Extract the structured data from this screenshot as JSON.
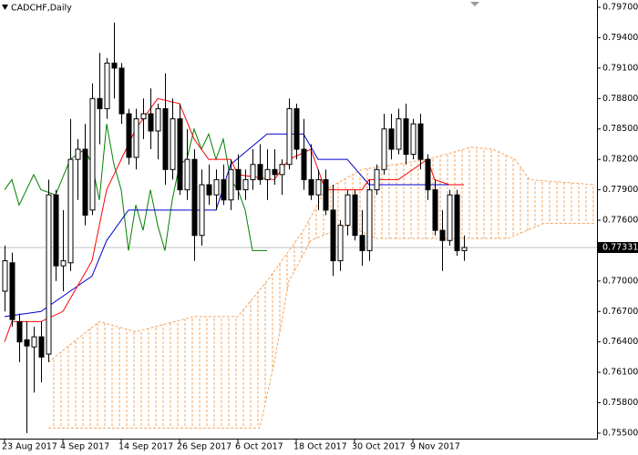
{
  "chart_data": {
    "type": "candlestick",
    "title": "CADCHF,Daily",
    "xlim": [
      -0.625,
      81.25
    ],
    "ylim": [
      0.75446,
      0.79772
    ],
    "xticks": [
      {
        "value": 0,
        "label": "23 Aug 2017"
      },
      {
        "value": 8,
        "label": "4 Sep 2017"
      },
      {
        "value": 16,
        "label": "14 Sep 2017"
      },
      {
        "value": 24,
        "label": "26 Sep 2017"
      },
      {
        "value": 32,
        "label": "6 Oct 2017"
      },
      {
        "value": 40,
        "label": "18 Oct 2017"
      },
      {
        "value": 48,
        "label": "30 Oct 2017"
      },
      {
        "value": 56,
        "label": "9 Nov 2017"
      }
    ],
    "yticks": [
      {
        "value": 0.797,
        "label": "0.79700"
      },
      {
        "value": 0.794,
        "label": "0.79400"
      },
      {
        "value": 0.791,
        "label": "0.79100"
      },
      {
        "value": 0.788,
        "label": "0.78800"
      },
      {
        "value": 0.785,
        "label": "0.78500"
      },
      {
        "value": 0.782,
        "label": "0.78200"
      },
      {
        "value": 0.779,
        "label": "0.77900"
      },
      {
        "value": 0.776,
        "label": "0.77600"
      },
      {
        "value": 0.77,
        "label": "0.77000"
      },
      {
        "value": 0.767,
        "label": "0.76700"
      },
      {
        "value": 0.764,
        "label": "0.76400"
      },
      {
        "value": 0.761,
        "label": "0.76100"
      },
      {
        "value": 0.758,
        "label": "0.75800"
      },
      {
        "value": 0.755,
        "label": "0.75500"
      }
    ],
    "current_price": {
      "value": 0.77331,
      "label": "0.77331"
    },
    "candles": {
      "open": [
        0.769,
        0.7718,
        0.766,
        0.7642,
        0.7635,
        0.7645,
        0.7628,
        0.7785,
        0.7715,
        0.7718,
        0.782,
        0.783,
        0.777,
        0.788,
        0.787,
        0.7915,
        0.791,
        0.7865,
        0.7822,
        0.786,
        0.7865,
        0.7848,
        0.787,
        0.781,
        0.786,
        0.779,
        0.782,
        0.7745,
        0.7795,
        0.7785,
        0.78,
        0.778,
        0.781,
        0.779,
        0.78,
        0.7815,
        0.78,
        0.781,
        0.7805,
        0.7815,
        0.787,
        0.783,
        0.78,
        0.7785,
        0.78,
        0.777,
        0.772,
        0.7755,
        0.7785,
        0.7745,
        0.773,
        0.779,
        0.781,
        0.785,
        0.783,
        0.786,
        0.7825,
        0.7855,
        0.782,
        0.779,
        0.775,
        0.774,
        0.7785,
        0.773
      ],
      "high": [
        0.7735,
        0.7728,
        0.7668,
        0.766,
        0.7655,
        0.766,
        0.78,
        0.779,
        0.777,
        0.786,
        0.784,
        0.7855,
        0.7895,
        0.7925,
        0.792,
        0.7955,
        0.7915,
        0.787,
        0.787,
        0.788,
        0.789,
        0.7875,
        0.7905,
        0.788,
        0.7875,
        0.785,
        0.783,
        0.781,
        0.7815,
        0.781,
        0.7815,
        0.782,
        0.7825,
        0.781,
        0.783,
        0.7835,
        0.783,
        0.783,
        0.782,
        0.788,
        0.7875,
        0.786,
        0.7835,
        0.781,
        0.781,
        0.7795,
        0.776,
        0.779,
        0.779,
        0.777,
        0.78,
        0.7815,
        0.7865,
        0.7865,
        0.787,
        0.7875,
        0.786,
        0.7865,
        0.7825,
        0.78,
        0.777,
        0.779,
        0.779,
        0.7745
      ],
      "low": [
        0.767,
        0.7655,
        0.762,
        0.755,
        0.759,
        0.76,
        0.762,
        0.77,
        0.769,
        0.771,
        0.778,
        0.7755,
        0.7765,
        0.7835,
        0.786,
        0.788,
        0.7855,
        0.7815,
        0.781,
        0.784,
        0.783,
        0.782,
        0.7795,
        0.78,
        0.7785,
        0.778,
        0.772,
        0.7735,
        0.7775,
        0.777,
        0.7775,
        0.777,
        0.778,
        0.778,
        0.779,
        0.7795,
        0.778,
        0.7795,
        0.7785,
        0.781,
        0.782,
        0.779,
        0.778,
        0.777,
        0.7765,
        0.7705,
        0.771,
        0.7745,
        0.774,
        0.7715,
        0.772,
        0.7785,
        0.7805,
        0.782,
        0.7825,
        0.7815,
        0.782,
        0.781,
        0.778,
        0.7745,
        0.771,
        0.7735,
        0.7725,
        0.772
      ],
      "close": [
        0.772,
        0.7662,
        0.764,
        0.7636,
        0.7645,
        0.7625,
        0.7785,
        0.7715,
        0.772,
        0.782,
        0.783,
        0.7765,
        0.788,
        0.787,
        0.7915,
        0.791,
        0.7865,
        0.7822,
        0.786,
        0.7865,
        0.7848,
        0.787,
        0.781,
        0.786,
        0.779,
        0.782,
        0.7745,
        0.7795,
        0.7785,
        0.78,
        0.778,
        0.781,
        0.779,
        0.78,
        0.7815,
        0.78,
        0.781,
        0.7805,
        0.7815,
        0.787,
        0.783,
        0.78,
        0.7785,
        0.78,
        0.777,
        0.772,
        0.7755,
        0.7785,
        0.7745,
        0.773,
        0.779,
        0.781,
        0.785,
        0.783,
        0.786,
        0.7825,
        0.7855,
        0.782,
        0.779,
        0.775,
        0.774,
        0.7785,
        0.773,
        0.77331
      ]
    },
    "series": [
      {
        "color": "#f4a460",
        "role": "cloud-top",
        "x": [
          6,
          13,
          18,
          26,
          32,
          36,
          41,
          44,
          49,
          58,
          64,
          67,
          70,
          72,
          81
        ],
        "values": [
          0.762,
          0.766,
          0.765,
          0.7665,
          0.7665,
          0.77,
          0.775,
          0.779,
          0.781,
          0.782,
          0.7832,
          0.783,
          0.782,
          0.78,
          0.7795
        ]
      },
      {
        "color": "#f4a460",
        "role": "cloud-bottom",
        "x": [
          6,
          35,
          37,
          39,
          42,
          47,
          51,
          69,
          74,
          81
        ],
        "values": [
          0.7555,
          0.7555,
          0.762,
          0.77,
          0.774,
          0.7755,
          0.7742,
          0.7742,
          0.7757,
          0.7757
        ]
      },
      {
        "color": "#008000",
        "role": "line",
        "x": [
          0,
          1,
          2,
          4,
          5,
          7,
          9,
          11,
          12,
          13,
          14,
          15,
          16,
          17,
          18,
          19,
          20,
          21,
          22,
          23,
          24,
          25,
          26,
          27,
          28,
          29,
          30,
          31,
          32,
          33,
          34,
          35,
          36
        ],
        "values": [
          0.779,
          0.78,
          0.7775,
          0.7805,
          0.779,
          0.7785,
          0.782,
          0.783,
          0.7815,
          0.778,
          0.7855,
          0.7815,
          0.779,
          0.773,
          0.7775,
          0.775,
          0.779,
          0.7755,
          0.773,
          0.778,
          0.7815,
          0.782,
          0.785,
          0.783,
          0.7845,
          0.782,
          0.784,
          0.78,
          0.779,
          0.777,
          0.773,
          0.773,
          0.773
        ]
      },
      {
        "color": "#0000cd",
        "role": "line",
        "x": [
          0,
          5,
          9,
          12,
          14,
          17,
          29,
          31,
          36,
          41,
          43,
          47,
          50,
          63
        ],
        "values": [
          0.7665,
          0.767,
          0.769,
          0.7705,
          0.774,
          0.777,
          0.777,
          0.7815,
          0.7845,
          0.7845,
          0.782,
          0.782,
          0.7795,
          0.7795
        ]
      },
      {
        "color": "#ff0000",
        "role": "line",
        "x": [
          0,
          1,
          5,
          8,
          12,
          14,
          18,
          21,
          24,
          26,
          28,
          31,
          32,
          37,
          39,
          42,
          44,
          49,
          50,
          54,
          58,
          59,
          61,
          63
        ],
        "values": [
          0.764,
          0.766,
          0.766,
          0.767,
          0.772,
          0.779,
          0.785,
          0.788,
          0.7875,
          0.784,
          0.782,
          0.782,
          0.7805,
          0.78,
          0.782,
          0.783,
          0.779,
          0.779,
          0.78,
          0.78,
          0.782,
          0.78,
          0.7795,
          0.7795
        ]
      }
    ]
  }
}
